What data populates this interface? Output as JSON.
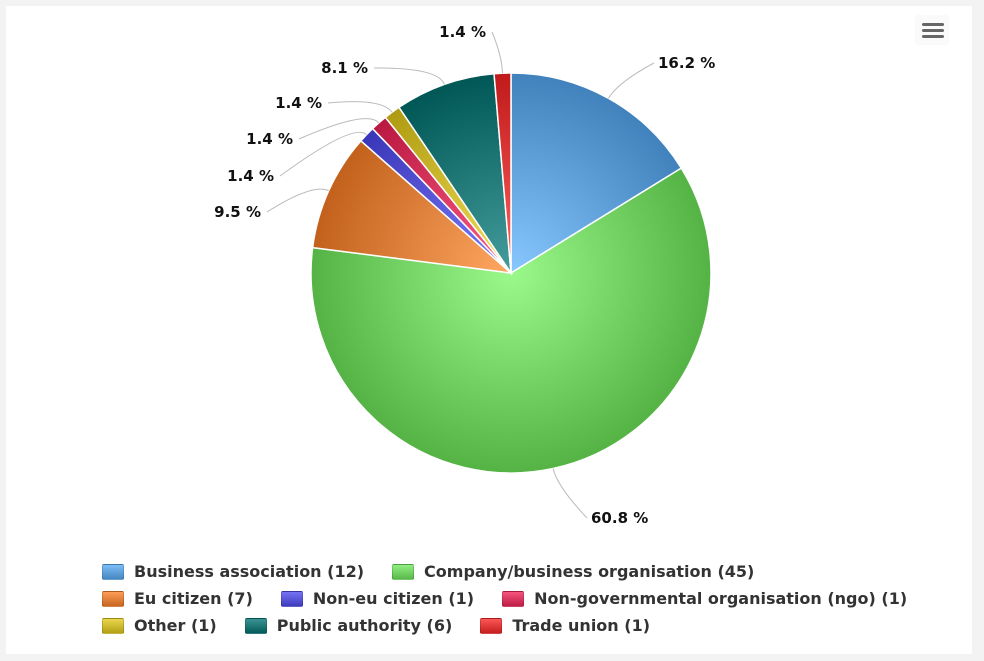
{
  "chart_data": {
    "type": "pie",
    "title": "",
    "slices": [
      {
        "name": "Business association",
        "count": 12,
        "percent": 16.2,
        "label": "16.2 %",
        "legend": "Business association (12)",
        "color": "#5b9bd5"
      },
      {
        "name": "Company/business organisation",
        "count": 45,
        "percent": 60.8,
        "label": "60.8 %",
        "legend": "Company/business organisation (45)",
        "color": "#6dcc5d"
      },
      {
        "name": "Eu citizen",
        "count": 7,
        "percent": 9.5,
        "label": "9.5 %",
        "legend": "Eu citizen (7)",
        "color": "#db7a35"
      },
      {
        "name": "Non-eu citizen",
        "count": 1,
        "percent": 1.4,
        "label": "1.4 %",
        "legend": "Non-eu citizen (1)",
        "color": "#5250d0"
      },
      {
        "name": "Non-governmental organisation (ngo)",
        "count": 1,
        "percent": 1.4,
        "label": "1.4 %",
        "legend": "Non-governmental organisation (ngo) (1)",
        "color": "#d2315a"
      },
      {
        "name": "Other",
        "count": 1,
        "percent": 1.4,
        "label": "1.4 %",
        "legend": "Other (1)",
        "color": "#c7b42a"
      },
      {
        "name": "Public authority",
        "count": 6,
        "percent": 8.1,
        "label": "8.1 %",
        "legend": "Public authority (6)",
        "color": "#17706f"
      },
      {
        "name": "Trade union",
        "count": 1,
        "percent": 1.4,
        "label": "1.4 %",
        "legend": "Trade union (1)",
        "color": "#d93333"
      }
    ],
    "legend_position": "bottom"
  },
  "menu": {
    "icon": "hamburger-menu-icon"
  }
}
